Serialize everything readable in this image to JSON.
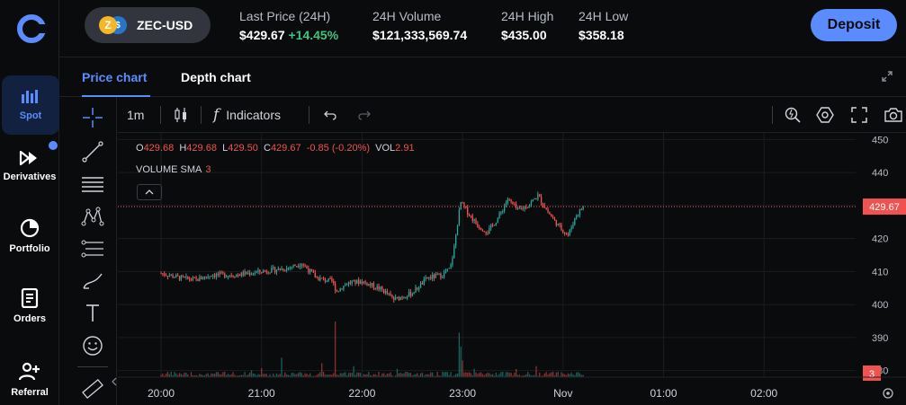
{
  "nav": {
    "items": [
      {
        "label": "Spot",
        "icon": "bar-chart-icon",
        "active": true
      },
      {
        "label": "Derivatives",
        "icon": "fast-forward-icon",
        "badge": true
      },
      {
        "label": "Portfolio",
        "icon": "pie-chart-icon"
      },
      {
        "label": "Orders",
        "icon": "document-list-icon"
      },
      {
        "label": "Referral",
        "icon": "add-user-icon"
      }
    ]
  },
  "header": {
    "pair": "ZEC-USD",
    "last_price_label": "Last Price (24H)",
    "last_price": "$429.67",
    "last_change": "+14.45%",
    "volume_label": "24H Volume",
    "volume": "$121,333,569.74",
    "high_label": "24H High",
    "high": "$435.00",
    "low_label": "24H Low",
    "low": "$358.18",
    "deposit_label": "Deposit"
  },
  "tabs": {
    "price_chart": "Price chart",
    "depth_chart": "Depth chart"
  },
  "toolbar": {
    "interval": "1m",
    "indicators": "Indicators"
  },
  "legend": {
    "o_key": "O",
    "o_val": "429.68",
    "h_key": "H",
    "h_val": "429.68",
    "l_key": "L",
    "l_val": "429.50",
    "c_key": "C",
    "c_val": "429.67",
    "change": "-0.85 (-0.20%)",
    "vol_key": "VOL",
    "vol_val": "2.91",
    "volume_sma_label": "VOLUME SMA",
    "volume_sma_val": "3"
  },
  "colors": {
    "up": "#26a69a",
    "down": "#ef5350",
    "accent": "#5b8cff"
  },
  "chart_data": {
    "type": "candlestick",
    "y_ticks": [
      "450",
      "440",
      "430",
      "420",
      "410",
      "400",
      "390",
      "380"
    ],
    "x_ticks": [
      "20:00",
      "21:00",
      "22:00",
      "23:00",
      "Nov",
      "01:00",
      "02:00"
    ],
    "ylim": [
      378,
      452
    ],
    "last_price_label": "429.67",
    "last_price": 429.67,
    "volume_label": "3",
    "grid": true,
    "close_path": [
      {
        "t": 0.0,
        "p": 409.5
      },
      {
        "t": 0.2,
        "p": 408.0
      },
      {
        "t": 0.35,
        "p": 407.5
      },
      {
        "t": 0.5,
        "p": 409.0
      },
      {
        "t": 0.75,
        "p": 409.0
      },
      {
        "t": 1.0,
        "p": 410.0
      },
      {
        "t": 1.25,
        "p": 411.0
      },
      {
        "t": 1.4,
        "p": 412.5
      },
      {
        "t": 1.55,
        "p": 408.0
      },
      {
        "t": 1.7,
        "p": 407.0
      },
      {
        "t": 1.75,
        "p": 404.0
      },
      {
        "t": 1.85,
        "p": 406.5
      },
      {
        "t": 2.0,
        "p": 407.0
      },
      {
        "t": 2.2,
        "p": 404.5
      },
      {
        "t": 2.32,
        "p": 401.5
      },
      {
        "t": 2.5,
        "p": 403.5
      },
      {
        "t": 2.65,
        "p": 408.0
      },
      {
        "t": 2.8,
        "p": 409.0
      },
      {
        "t": 2.88,
        "p": 411.0
      },
      {
        "t": 2.92,
        "p": 418.0
      },
      {
        "t": 2.98,
        "p": 431.0
      },
      {
        "t": 3.05,
        "p": 428.0
      },
      {
        "t": 3.15,
        "p": 424.0
      },
      {
        "t": 3.25,
        "p": 422.0
      },
      {
        "t": 3.35,
        "p": 426.0
      },
      {
        "t": 3.45,
        "p": 432.0
      },
      {
        "t": 3.55,
        "p": 428.5
      },
      {
        "t": 3.65,
        "p": 430.0
      },
      {
        "t": 3.75,
        "p": 433.0
      },
      {
        "t": 3.85,
        "p": 428.0
      },
      {
        "t": 3.95,
        "p": 424.0
      },
      {
        "t": 4.05,
        "p": 421.0
      },
      {
        "t": 4.13,
        "p": 427.0
      },
      {
        "t": 4.2,
        "p": 429.67
      }
    ],
    "volume_spikes": [
      {
        "t": 1.73,
        "v": 1.0
      },
      {
        "t": 2.97,
        "v": 0.8
      },
      {
        "t": 2.99,
        "v": 0.55
      },
      {
        "t": 1.2,
        "v": 0.35
      },
      {
        "t": 3.0,
        "v": 0.3
      },
      {
        "t": 1.6,
        "v": 0.25
      }
    ]
  }
}
